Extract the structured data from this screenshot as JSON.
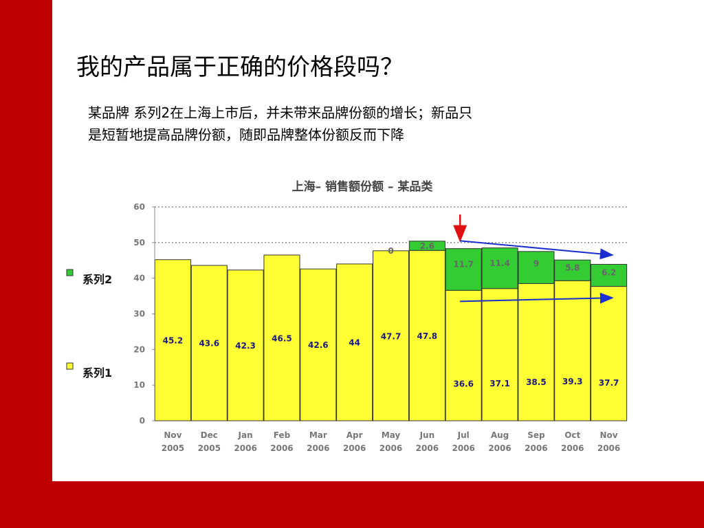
{
  "slide": {
    "title": "我的产品属于正确的价格段吗？",
    "body_line1": "某品牌 系列2在上海上市后，并未带来品牌份额的增长；新品只",
    "body_line2": "是短暂地提高品牌份额，随即品牌整体份额反而下降"
  },
  "colors": {
    "frame": "#c00000",
    "series1": "#ffff33",
    "series2": "#33cc33",
    "arrow_red": "#e01010",
    "arrow_blue": "#1a2fd0"
  },
  "chart_data": {
    "type": "bar",
    "stacked": true,
    "title": "上海– 销售额份额 – 某品类",
    "xlabel": "",
    "ylabel": "",
    "ylim": [
      0,
      60
    ],
    "yticks": [
      0,
      10,
      20,
      30,
      40,
      50,
      60
    ],
    "grid": "dotted at 50 and 60",
    "legend_position": "left",
    "categories": [
      [
        "Nov",
        "2005"
      ],
      [
        "Dec",
        "2005"
      ],
      [
        "Jan",
        "2006"
      ],
      [
        "Feb",
        "2006"
      ],
      [
        "Mar",
        "2006"
      ],
      [
        "Apr",
        "2006"
      ],
      [
        "May",
        "2006"
      ],
      [
        "Jun",
        "2006"
      ],
      [
        "Jul",
        "2006"
      ],
      [
        "Aug",
        "2006"
      ],
      [
        "Sep",
        "2006"
      ],
      [
        "Oct",
        "2006"
      ],
      [
        "Nov",
        "2006"
      ]
    ],
    "series": [
      {
        "name": "系列1",
        "color": "#ffff33",
        "values": [
          45.2,
          43.6,
          42.3,
          46.5,
          42.6,
          44,
          47.7,
          47.8,
          36.6,
          37.1,
          38.5,
          39.3,
          37.7
        ],
        "labels": [
          "45.2",
          "43.6",
          "42.3",
          "46.5",
          "42.6",
          "44",
          "47.7",
          "47.8",
          "36.6",
          "37.1",
          "38.5",
          "39.3",
          "37.7"
        ]
      },
      {
        "name": "系列2",
        "color": "#33cc33",
        "values": [
          null,
          null,
          null,
          null,
          null,
          null,
          0,
          2.6,
          11.7,
          11.4,
          9,
          5.8,
          6.2
        ],
        "labels": [
          "",
          "",
          "",
          "",
          "",
          "",
          "0",
          "2.6",
          "11.7",
          "11.4",
          "9",
          "5.8",
          "6.2"
        ]
      }
    ],
    "annotations": [
      {
        "type": "arrow",
        "color": "red",
        "direction": "down",
        "at_category": 8
      },
      {
        "type": "arrow",
        "color": "blue",
        "from": [
          8,
          50.5
        ],
        "to": [
          12,
          46.5
        ]
      },
      {
        "type": "arrow",
        "color": "blue",
        "from": [
          8,
          33.5
        ],
        "to": [
          12,
          34.5
        ]
      }
    ]
  }
}
